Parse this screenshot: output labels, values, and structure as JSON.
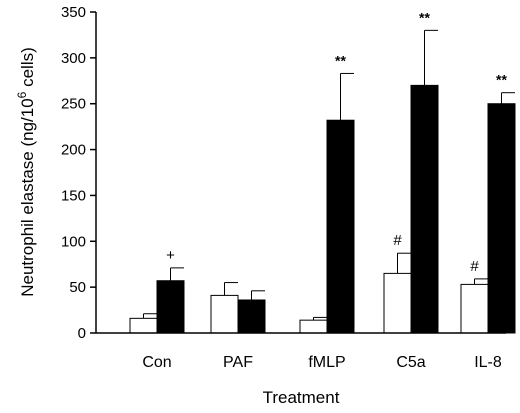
{
  "chart_data": {
    "type": "bar",
    "xlabel": "Treatment",
    "ylabel_main": "Neutrophil elastase  (ng/10",
    "ylabel_sup": "6",
    "ylabel_tail": " cells)",
    "ylim": [
      0,
      350
    ],
    "yticks": [
      0,
      50,
      100,
      150,
      200,
      250,
      300,
      350
    ],
    "categories": [
      "Con",
      "PAF",
      "fMLP",
      "C5a",
      "IL-8"
    ],
    "series": [
      {
        "fill": "#ffffff",
        "values": [
          16,
          41,
          14,
          65,
          53
        ],
        "errors": [
          5,
          14,
          3,
          22,
          6
        ]
      },
      {
        "fill": "#000000",
        "values": [
          57,
          36,
          232,
          270,
          250
        ],
        "errors": [
          14,
          10,
          51,
          60,
          12
        ]
      }
    ],
    "annotations": [
      {
        "category": 0,
        "series": 1,
        "text": "+"
      },
      {
        "category": 2,
        "series": 1,
        "text": "**"
      },
      {
        "category": 3,
        "series": 0,
        "text": "#"
      },
      {
        "category": 3,
        "series": 1,
        "text": "**"
      },
      {
        "category": 4,
        "series": 0,
        "text": "#"
      },
      {
        "category": 4,
        "series": 1,
        "text": "**"
      }
    ]
  }
}
